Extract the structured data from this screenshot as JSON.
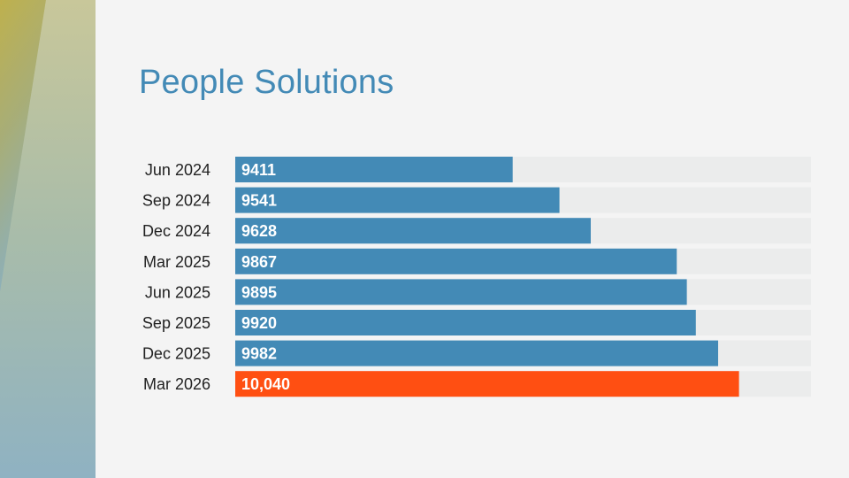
{
  "page": {
    "title": "People Solutions",
    "colors": {
      "background": "#f4f4f4",
      "title": "#438ab6",
      "bar": "#438ab6",
      "highlight_bar": "#ff4f12",
      "track": "#ebecec",
      "label_text": "#222222",
      "value_text": "#ffffff",
      "side_band_top": "#c0ad3a",
      "side_band_bottom": "#86aec0"
    }
  },
  "chart_data": {
    "type": "bar",
    "orientation": "horizontal",
    "title": "People Solutions",
    "xlabel": "",
    "ylabel": "",
    "categories": [
      "Jun 2024",
      "Sep 2024",
      "Dec 2024",
      "Mar 2025",
      "Jun 2025",
      "Sep 2025",
      "Dec 2025",
      "Mar 2026"
    ],
    "values": [
      9411,
      9541,
      9628,
      9867,
      9895,
      9920,
      9982,
      10040
    ],
    "value_labels": [
      "9411",
      "9541",
      "9628",
      "9867",
      "9895",
      "9920",
      "9982",
      "10,040"
    ],
    "highlight_index": 7,
    "xlim": [
      8640,
      10240
    ],
    "grid": false,
    "legend": "none"
  }
}
